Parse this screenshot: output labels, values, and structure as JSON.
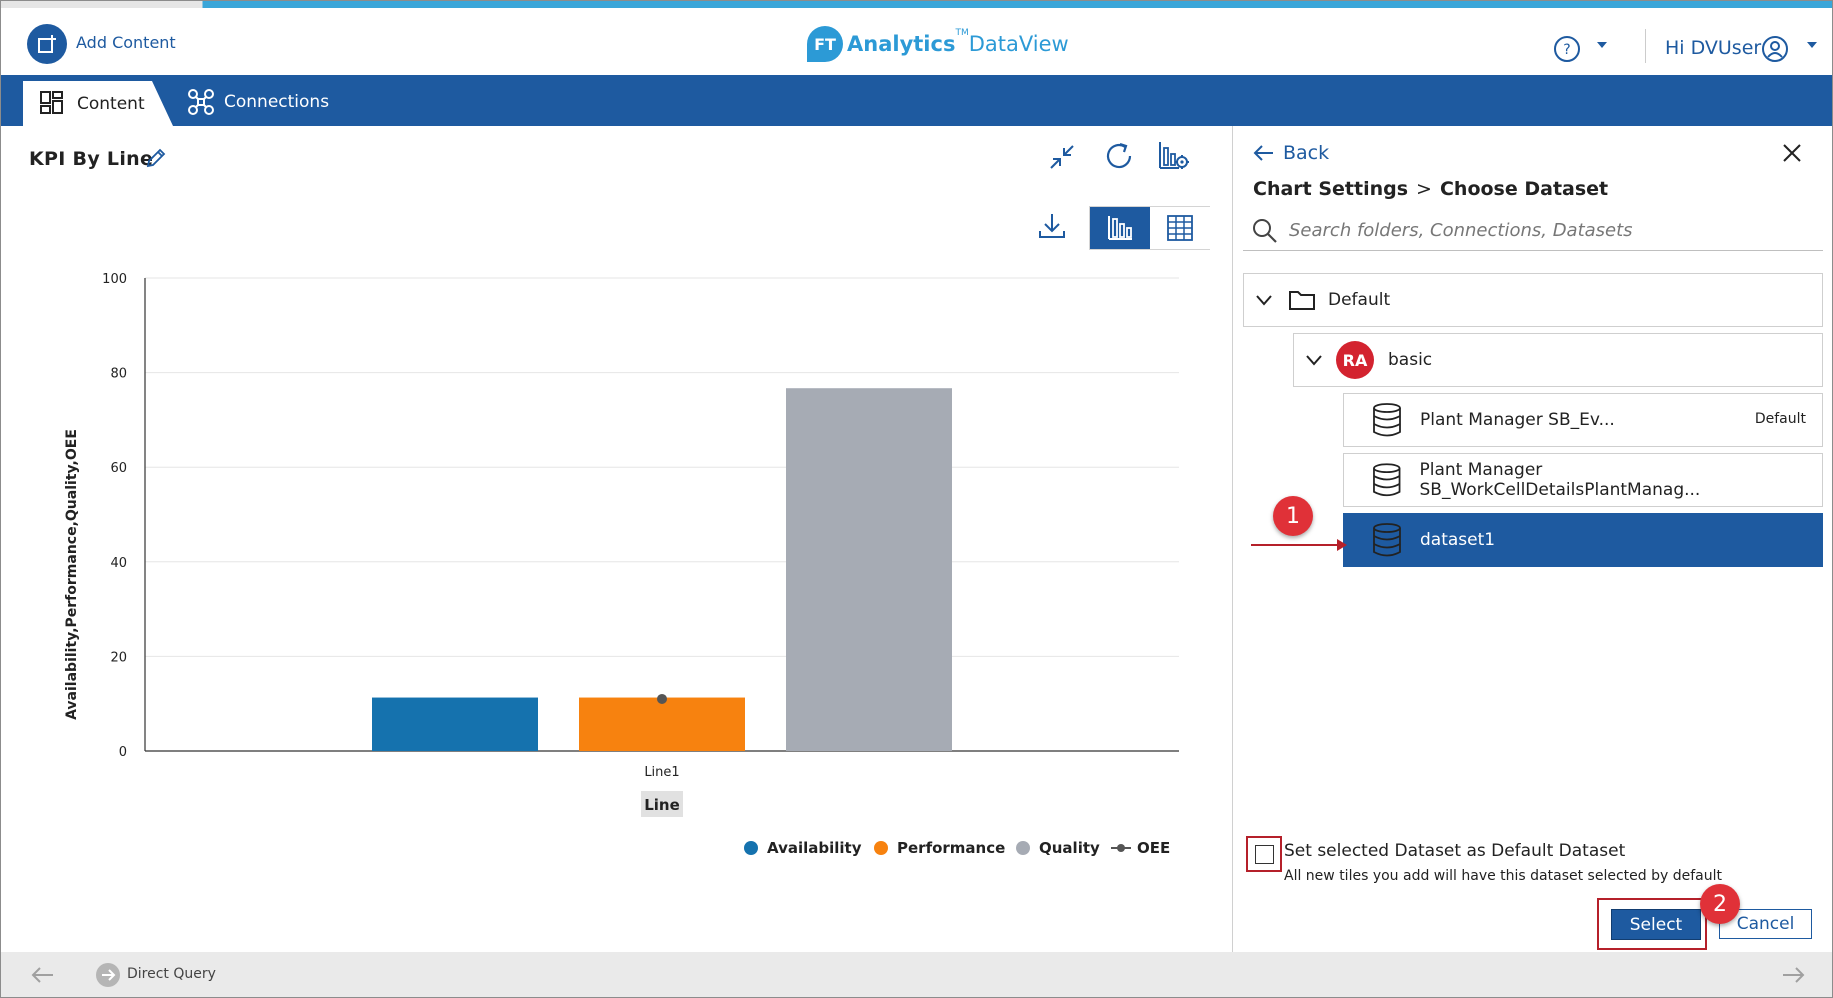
{
  "header": {
    "add_content_label": "Add Content",
    "brand_ft": "FT",
    "brand_primary": "Analytics",
    "brand_tm": "TM",
    "brand_secondary": "DataView",
    "greeting": "Hi DVUser"
  },
  "nav": {
    "tabs": [
      {
        "label": "Content"
      },
      {
        "label": "Connections"
      }
    ]
  },
  "tile": {
    "title": "KPI By Line"
  },
  "chart_data": {
    "type": "bar",
    "categories": [
      "Line1"
    ],
    "xlabel": "Line",
    "ylabel": "Availability,Performance,Quality,OEE",
    "ylim": [
      0,
      100
    ],
    "y_ticks": [
      "0",
      "20",
      "40",
      "60",
      "80",
      "100"
    ],
    "series": [
      {
        "name": "Availability",
        "values": [
          11.3
        ],
        "color": "#1572ae",
        "mark": "bar"
      },
      {
        "name": "Performance",
        "values": [
          11.3
        ],
        "color": "#f7820f",
        "mark": "bar"
      },
      {
        "name": "Quality",
        "values": [
          76.7
        ],
        "color": "#a6abb4",
        "mark": "bar"
      },
      {
        "name": "OEE",
        "values": [
          11
        ],
        "color": "#555555",
        "mark": "line"
      }
    ],
    "grid": true,
    "legend_position": "bottom-right"
  },
  "side_panel": {
    "back_label": "Back",
    "breadcrumb": [
      "Chart Settings",
      "Choose Dataset"
    ],
    "breadcrumb_sep": ">",
    "search_placeholder": "Search folders, Connections, Datasets",
    "tree": {
      "folder": "Default",
      "connection_logo": "RA",
      "connection": "basic",
      "datasets": [
        {
          "label": "Plant Manager SB_Ev...",
          "tag": "Default"
        },
        {
          "label": "Plant Manager SB_WorkCellDetailsPlantManag..."
        },
        {
          "label": "dataset1",
          "selected": true
        }
      ]
    },
    "default_checkbox_label": "Set selected Dataset as Default Dataset",
    "default_checkbox_hint": "All new tiles you add will have this dataset selected by default",
    "default_checkbox_checked": false,
    "select_label": "Select",
    "cancel_label": "Cancel"
  },
  "annotations": {
    "step1": "1",
    "step2": "2"
  },
  "footer": {
    "mode_label": "Direct Query"
  },
  "colors": {
    "primary": "#1e5aa0",
    "accent": "#2c9ad6",
    "annotation": "#e03138"
  }
}
